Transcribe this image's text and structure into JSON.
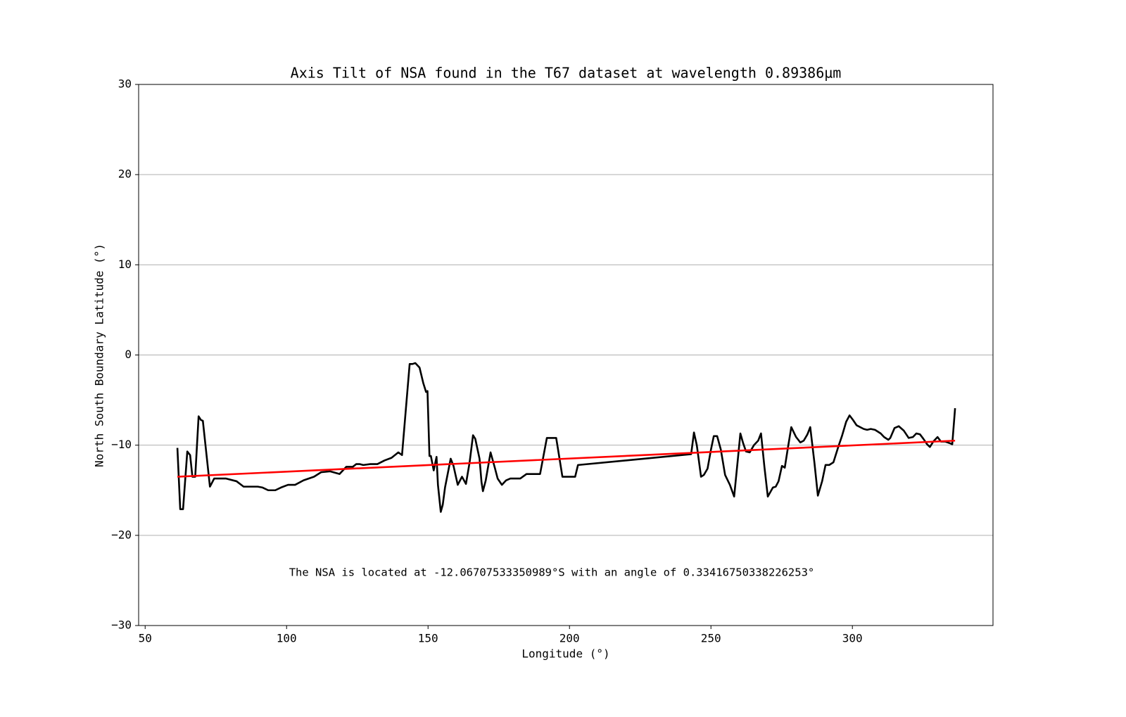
{
  "chart_data": {
    "type": "line",
    "title": "Axis Tilt of NSA found in the T67 dataset at wavelength 0.89386µm",
    "xlabel": "Longitude (°)",
    "ylabel": "North South Boundary Latitude (°)",
    "annotation": "The NSA is located at -12.06707533350989°S with an angle of 0.33416750338226253°",
    "xlim": [
      47.7,
      349.7
    ],
    "ylim": [
      -30,
      30
    ],
    "xticks": [
      50,
      100,
      150,
      200,
      250,
      300
    ],
    "yticks": [
      {
        "value": -30,
        "label": "−30"
      },
      {
        "value": -20,
        "label": "−20"
      },
      {
        "value": -10,
        "label": "−10"
      },
      0,
      10,
      20,
      30
    ],
    "grid": "y",
    "series": [
      {
        "color": "#000000",
        "x": [
          61.4,
          62.4,
          63.4,
          64.9,
          65.9,
          66.7,
          67.7,
          68.9,
          69.7,
          70.4,
          72.9,
          74.4,
          78.6,
          82.3,
          84.8,
          89.8,
          91.5,
          93.5,
          96.0,
          98.0,
          100.5,
          103.0,
          106.0,
          109.7,
          112.2,
          115.4,
          118.7,
          121.1,
          123.4,
          124.6,
          125.9,
          127.1,
          129.6,
          132.1,
          134.6,
          137.1,
          139.5,
          140.8,
          143.5,
          144.5,
          145.5,
          147.0,
          148.3,
          149.3,
          149.8,
          150.5,
          151.0,
          152.0,
          153.0,
          153.5,
          154.5,
          155.2,
          156.0,
          158.0,
          159.0,
          160.5,
          162.0,
          163.4,
          164.7,
          165.9,
          166.7,
          168.2,
          168.9,
          169.4,
          170.4,
          172.1,
          173.6,
          174.6,
          176.1,
          177.6,
          179.1,
          182.6,
          184.8,
          189.6,
          192.0,
          195.3,
          197.5,
          202.0,
          203.0,
          243.0,
          244.0,
          245.0,
          246.5,
          247.5,
          248.8,
          250.0,
          251.0,
          252.2,
          253.5,
          255.0,
          256.7,
          258.2,
          259.5,
          260.4,
          261.4,
          262.4,
          263.7,
          265.2,
          266.7,
          267.7,
          268.9,
          270.1,
          271.9,
          272.9,
          273.9,
          275.1,
          276.1,
          277.1,
          278.4,
          280.1,
          281.6,
          282.8,
          284.1,
          285.1,
          286.6,
          287.8,
          289.3,
          290.5,
          291.8,
          293.3,
          295.0,
          296.3,
          297.8,
          299.0,
          300.2,
          301.5,
          304.0,
          305.2,
          306.5,
          308.0,
          310.0,
          311.2,
          312.7,
          313.4,
          314.9,
          316.4,
          318.2,
          319.9,
          321.4,
          322.6,
          323.9,
          325.1,
          326.4,
          327.4,
          328.6,
          330.1,
          331.3,
          332.8,
          334.6,
          335.3,
          336.3
        ],
        "values": [
          -10.3,
          -17.1,
          -17.1,
          -10.7,
          -11.1,
          -13.5,
          -13.5,
          -6.8,
          -7.2,
          -7.3,
          -14.6,
          -13.7,
          -13.7,
          -14.0,
          -14.6,
          -14.6,
          -14.7,
          -15.0,
          -15.0,
          -14.7,
          -14.4,
          -14.4,
          -13.9,
          -13.5,
          -13.0,
          -12.9,
          -13.2,
          -12.4,
          -12.4,
          -12.1,
          -12.1,
          -12.2,
          -12.1,
          -12.1,
          -11.7,
          -11.4,
          -10.8,
          -11.1,
          -1.0,
          -1.0,
          -0.9,
          -1.4,
          -3.1,
          -4.1,
          -4.0,
          -11.2,
          -11.2,
          -12.8,
          -11.3,
          -14.4,
          -17.4,
          -16.6,
          -14.7,
          -11.5,
          -12.3,
          -14.4,
          -13.5,
          -14.3,
          -11.9,
          -8.9,
          -9.3,
          -11.5,
          -14.1,
          -15.1,
          -13.9,
          -10.8,
          -12.5,
          -13.7,
          -14.4,
          -13.9,
          -13.7,
          -13.7,
          -13.2,
          -13.2,
          -9.2,
          -9.2,
          -13.5,
          -13.5,
          -12.2,
          -11.0,
          -8.6,
          -10.0,
          -13.5,
          -13.3,
          -12.6,
          -10.5,
          -9.0,
          -9.0,
          -10.5,
          -13.3,
          -14.4,
          -15.7,
          -11.6,
          -8.7,
          -9.8,
          -10.7,
          -10.8,
          -10.0,
          -9.5,
          -8.7,
          -12.4,
          -15.7,
          -14.7,
          -14.6,
          -14.0,
          -12.3,
          -12.5,
          -10.5,
          -8.0,
          -9.1,
          -9.7,
          -9.5,
          -8.8,
          -8.0,
          -12.0,
          -15.6,
          -14.0,
          -12.2,
          -12.2,
          -11.9,
          -10.2,
          -9.0,
          -7.4,
          -6.7,
          -7.2,
          -7.8,
          -8.2,
          -8.3,
          -8.2,
          -8.3,
          -8.7,
          -9.1,
          -9.4,
          -9.2,
          -8.1,
          -7.9,
          -8.4,
          -9.2,
          -9.1,
          -8.7,
          -8.8,
          -9.3,
          -9.9,
          -10.2,
          -9.6,
          -9.1,
          -9.6,
          -9.6,
          -9.8,
          -9.9,
          -5.9
        ]
      },
      {
        "color": "#ff0000",
        "x": [
          61.4,
          336.3
        ],
        "values": [
          -13.5,
          -9.5
        ]
      }
    ]
  }
}
